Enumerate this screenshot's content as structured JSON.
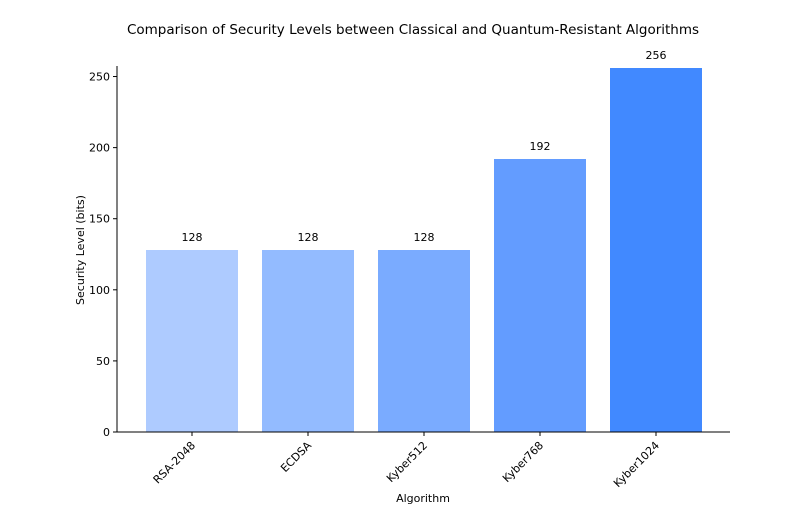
{
  "chart_data": {
    "type": "bar",
    "title": "Comparison of Security Levels between Classical and Quantum-Resistant Algorithms",
    "xlabel": "Algorithm",
    "ylabel": "Security Level (bits)",
    "categories": [
      "RSA-2048",
      "ECDSA",
      "Kyber512",
      "Kyber768",
      "Kyber1024"
    ],
    "values": [
      128,
      128,
      128,
      192,
      256
    ],
    "data_labels": [
      "128",
      "128",
      "128",
      "192",
      "256"
    ],
    "colors": [
      "#aecbff",
      "#93bbff",
      "#7aabff",
      "#639cff",
      "#4189ff"
    ],
    "ylim": [
      0,
      256
    ],
    "yticks": [
      0,
      50,
      100,
      150,
      200,
      250
    ],
    "ytick_labels": [
      "0",
      "50",
      "100",
      "150",
      "200",
      "250"
    ],
    "grid": false,
    "legend": "none"
  }
}
